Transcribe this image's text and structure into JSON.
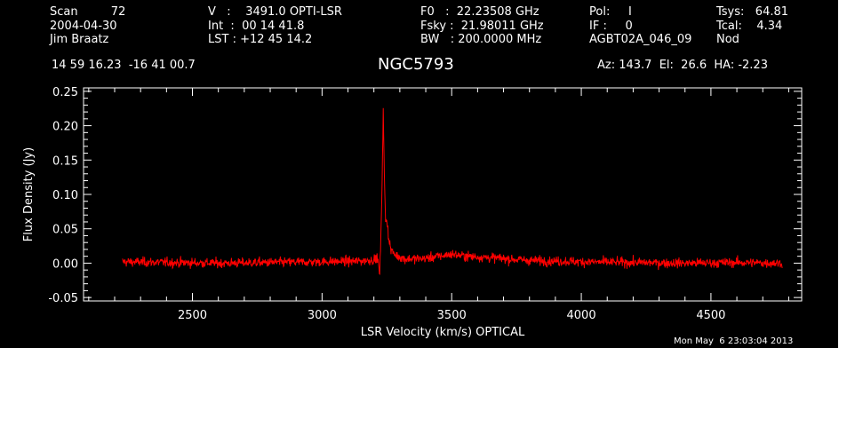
{
  "header": {
    "col1": [
      "Scan         72",
      "2004-04-30",
      "Jim Braatz"
    ],
    "col2": [
      "V   :    3491.0 OPTI-LSR",
      "Int  :  00 14 41.8",
      "LST : +12 45 14.2"
    ],
    "col3": [
      "F0   :  22.23508 GHz",
      "Fsky :  21.98011 GHz",
      "BW   : 200.0000 MHz"
    ],
    "col4": [
      "Pol:     I",
      "IF :     0",
      "AGBT02A_046_09"
    ],
    "col5": [
      "Tsys:   64.81",
      "Tcal:    4.34",
      "Nod"
    ],
    "coords": "14 59 16.23  -16 41 00.7",
    "source": "NGC5793",
    "azel": "Az: 143.7  El:  26.6  HA: -2.23",
    "timestamp": "Mon May  6 23:03:04 2013"
  },
  "colors": {
    "background": "#000000",
    "axes": "#ffffff",
    "trace": "#ff0000"
  },
  "chart_data": {
    "type": "line",
    "xlabel": "LSR Velocity (km/s) OPTICAL",
    "ylabel": "Flux Density (Jy)",
    "xlim": [
      2080,
      4850
    ],
    "ylim": [
      -0.055,
      0.255
    ],
    "xticks": [
      2500,
      3000,
      3500,
      4000,
      4500
    ],
    "xtick_labels": [
      "2500",
      "3000",
      "3500",
      "4000",
      "4500"
    ],
    "yticks": [
      -0.05,
      0.0,
      0.05,
      0.1,
      0.15,
      0.2,
      0.25
    ],
    "ytick_labels": [
      "-0.05",
      "0.00",
      "0.05",
      "0.10",
      "0.15",
      "0.20",
      "0.25"
    ],
    "series": [
      {
        "color": "#ff0000",
        "x_range": [
          2230,
          4775
        ],
        "noise_rms": 0.007,
        "points": [
          [
            2230,
            0.002
          ],
          [
            2400,
            0.001
          ],
          [
            2600,
            0.0
          ],
          [
            2800,
            0.001
          ],
          [
            3000,
            0.002
          ],
          [
            3150,
            0.003
          ],
          [
            3200,
            0.005
          ],
          [
            3215,
            0.008
          ],
          [
            3222,
            -0.02
          ],
          [
            3228,
            0.05
          ],
          [
            3232,
            0.13
          ],
          [
            3236,
            0.225
          ],
          [
            3240,
            0.13
          ],
          [
            3245,
            0.06
          ],
          [
            3250,
            0.065
          ],
          [
            3256,
            0.04
          ],
          [
            3265,
            0.02
          ],
          [
            3280,
            0.012
          ],
          [
            3320,
            0.006
          ],
          [
            3400,
            0.007
          ],
          [
            3500,
            0.013
          ],
          [
            3560,
            0.01
          ],
          [
            3650,
            0.008
          ],
          [
            3800,
            0.004
          ],
          [
            4000,
            0.002
          ],
          [
            4200,
            0.001
          ],
          [
            4400,
            0.0
          ],
          [
            4600,
            0.001
          ],
          [
            4775,
            0.0
          ]
        ]
      }
    ]
  }
}
